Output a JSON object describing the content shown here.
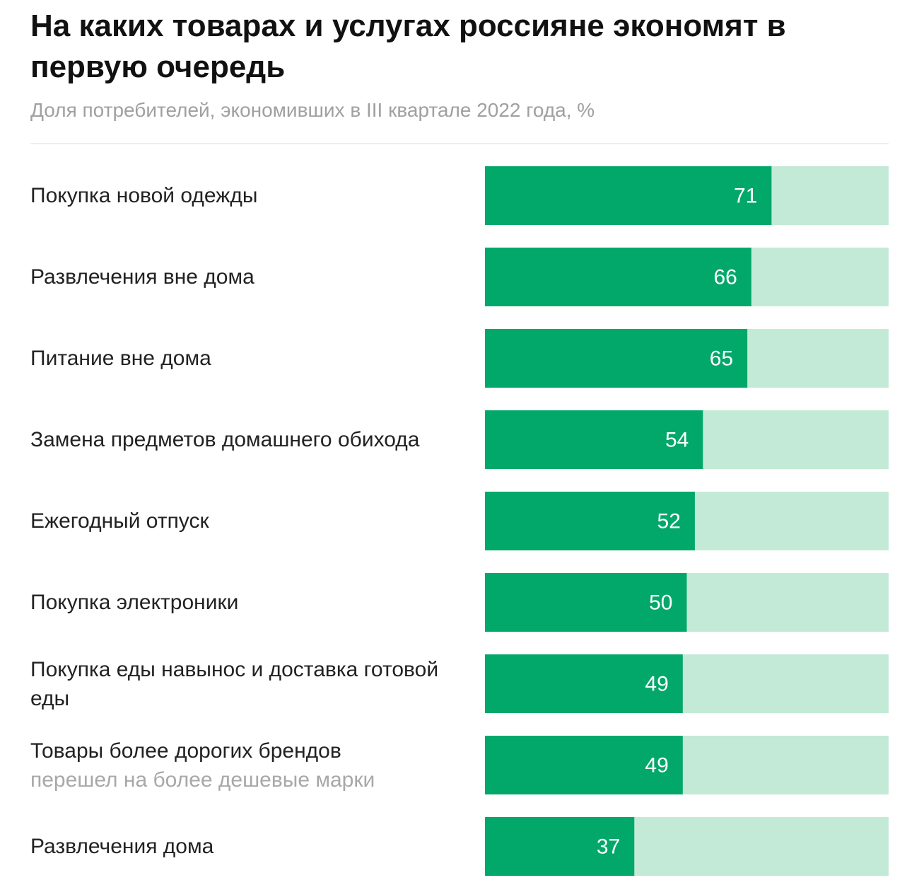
{
  "chart_data": {
    "type": "bar",
    "orientation": "horizontal",
    "title": "На каких товарах и услугах россияне экономят в первую очередь",
    "subtitle": "Доля потребителей, экономивших в III квартале 2022 года, %",
    "categories": [
      "Покупка новой одежды",
      "Развлечения вне дома",
      "Питание вне дома",
      "Замена предметов домашнего обихода",
      "Ежегодный отпуск",
      "Покупка электроники",
      "Покупка еды навынос и доставка готовой еды",
      "Товары более дорогих брендов",
      "Развлечения дома"
    ],
    "category_notes": [
      null,
      null,
      null,
      null,
      null,
      null,
      null,
      "перешел на более дешевые марки",
      null
    ],
    "values": [
      71,
      66,
      65,
      54,
      52,
      50,
      49,
      49,
      37
    ],
    "color": "#02a86a",
    "track_color": "#c3ead6",
    "xlim": [
      0,
      100
    ]
  }
}
